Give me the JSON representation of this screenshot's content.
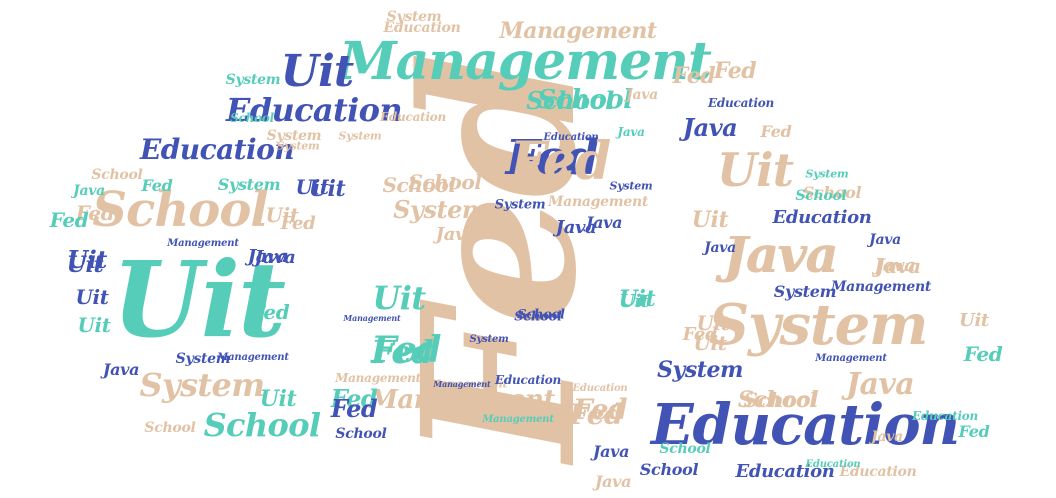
{
  "palette": {
    "tan": "#E2C2A4",
    "blue": "#4153B4",
    "teal": "#55CDB8",
    "background": "#FFFFFF"
  },
  "words": [
    {
      "text": "Fed",
      "color": "tan",
      "rotate": -90
    },
    {
      "text": "Uit",
      "color": "teal"
    },
    {
      "text": "Education",
      "color": "blue"
    },
    {
      "text": "System",
      "color": "tan"
    },
    {
      "text": "Management",
      "color": "teal"
    },
    {
      "text": "Java",
      "color": "tan"
    },
    {
      "text": "School",
      "color": "tan"
    },
    {
      "text": "Fed",
      "color": "blue"
    },
    {
      "text": "Uit",
      "color": "tan"
    },
    {
      "text": "Uit",
      "color": "blue"
    },
    {
      "text": "Education",
      "color": "blue"
    },
    {
      "text": "Education",
      "color": "blue"
    },
    {
      "text": "System",
      "color": "tan"
    },
    {
      "text": "School",
      "color": "teal"
    },
    {
      "text": "Fed",
      "color": "teal"
    },
    {
      "text": "Management",
      "color": "tan"
    },
    {
      "text": "Java",
      "color": "tan"
    },
    {
      "text": "Fed",
      "color": "tan"
    },
    {
      "text": "School",
      "color": "teal"
    },
    {
      "text": "Java",
      "color": "blue"
    },
    {
      "text": "Uit",
      "color": "teal"
    },
    {
      "text": "Uit",
      "color": "blue"
    },
    {
      "text": "Uit",
      "color": "blue"
    },
    {
      "text": "System",
      "color": "tan"
    },
    {
      "text": "System",
      "color": "teal"
    },
    {
      "text": "Management",
      "color": "tan"
    },
    {
      "text": "Management",
      "color": "tan"
    },
    {
      "text": "Education",
      "color": "tan"
    },
    {
      "text": "School",
      "color": "tan"
    },
    {
      "text": "School",
      "color": "tan"
    },
    {
      "text": "Java",
      "color": "tan"
    },
    {
      "text": "Java",
      "color": "tan"
    },
    {
      "text": "Fed",
      "color": "tan"
    },
    {
      "text": "System",
      "color": "blue"
    },
    {
      "text": "Education",
      "color": "blue"
    },
    {
      "text": "Fed",
      "color": "teal"
    },
    {
      "text": "Java",
      "color": "teal"
    },
    {
      "text": "Uit",
      "color": "blue"
    },
    {
      "text": "Fed",
      "color": "teal"
    },
    {
      "text": "Java",
      "color": "blue"
    },
    {
      "text": "Education",
      "color": "blue"
    },
    {
      "text": "System",
      "color": "blue"
    },
    {
      "text": "School",
      "color": "blue"
    },
    {
      "text": "Fed",
      "color": "teal"
    },
    {
      "text": "Uit",
      "color": "teal"
    },
    {
      "text": "Java",
      "color": "blue"
    },
    {
      "text": "System",
      "color": "blue"
    },
    {
      "text": "Management",
      "color": "blue"
    },
    {
      "text": "School",
      "color": "blue"
    },
    {
      "text": "Java",
      "color": "blue"
    },
    {
      "text": "Fed",
      "color": "tan"
    },
    {
      "text": "Fed",
      "color": "teal"
    },
    {
      "text": "Uit",
      "color": "tan"
    },
    {
      "text": "Java",
      "color": "tan"
    },
    {
      "text": "System",
      "color": "tan"
    },
    {
      "text": "School",
      "color": "tan"
    },
    {
      "text": "Education",
      "color": "tan"
    },
    {
      "text": "Management",
      "color": "tan"
    },
    {
      "text": "Management",
      "color": "tan"
    },
    {
      "text": "Management",
      "color": "blue"
    },
    {
      "text": "Management",
      "color": "blue"
    },
    {
      "text": "Management",
      "color": "blue"
    },
    {
      "text": "Management",
      "color": "blue"
    },
    {
      "text": "Management",
      "color": "blue"
    },
    {
      "text": "Management",
      "color": "teal"
    },
    {
      "text": "Education",
      "color": "blue"
    },
    {
      "text": "Education",
      "color": "blue"
    },
    {
      "text": "Education",
      "color": "tan"
    },
    {
      "text": "Education",
      "color": "tan"
    },
    {
      "text": "Education",
      "color": "teal"
    },
    {
      "text": "Education",
      "color": "blue"
    },
    {
      "text": "Education",
      "color": "teal"
    },
    {
      "text": "System",
      "color": "blue"
    },
    {
      "text": "System",
      "color": "blue"
    },
    {
      "text": "System",
      "color": "blue"
    },
    {
      "text": "System",
      "color": "teal"
    },
    {
      "text": "System",
      "color": "tan"
    },
    {
      "text": "System",
      "color": "tan"
    },
    {
      "text": "System",
      "color": "tan"
    },
    {
      "text": "System",
      "color": "teal"
    },
    {
      "text": "School",
      "color": "teal"
    },
    {
      "text": "School",
      "color": "blue"
    },
    {
      "text": "School",
      "color": "tan"
    },
    {
      "text": "School",
      "color": "tan"
    },
    {
      "text": "School",
      "color": "tan"
    },
    {
      "text": "School",
      "color": "tan"
    },
    {
      "text": "School",
      "color": "teal"
    },
    {
      "text": "School",
      "color": "teal"
    },
    {
      "text": "School",
      "color": "teal"
    },
    {
      "text": "School",
      "color": "blue"
    },
    {
      "text": "Java",
      "color": "teal"
    },
    {
      "text": "Java",
      "color": "tan"
    },
    {
      "text": "Java",
      "color": "tan"
    },
    {
      "text": "Java",
      "color": "blue"
    },
    {
      "text": "Java",
      "color": "tan"
    },
    {
      "text": "Java",
      "color": "blue"
    },
    {
      "text": "Java",
      "color": "blue"
    },
    {
      "text": "Java",
      "color": "blue"
    },
    {
      "text": "Java",
      "color": "tan"
    },
    {
      "text": "Java",
      "color": "blue"
    },
    {
      "text": "Uit",
      "color": "blue"
    },
    {
      "text": "Uit",
      "color": "tan"
    },
    {
      "text": "Uit",
      "color": "tan"
    },
    {
      "text": "Uit",
      "color": "teal"
    },
    {
      "text": "Uit",
      "color": "teal"
    },
    {
      "text": "Uit",
      "color": "blue"
    },
    {
      "text": "Uit",
      "color": "teal"
    },
    {
      "text": "Uit",
      "color": "tan"
    },
    {
      "text": "Uit",
      "color": "tan"
    },
    {
      "text": "Fed",
      "color": "tan"
    },
    {
      "text": "Fed",
      "color": "tan"
    },
    {
      "text": "Fed",
      "color": "tan"
    },
    {
      "text": "Fed",
      "color": "tan"
    },
    {
      "text": "Fed",
      "color": "teal"
    },
    {
      "text": "Fed",
      "color": "teal"
    },
    {
      "text": "Fed",
      "color": "blue"
    },
    {
      "text": "Fed",
      "color": "tan"
    },
    {
      "text": "Fed",
      "color": "tan"
    },
    {
      "text": "Fed",
      "color": "teal"
    }
  ]
}
